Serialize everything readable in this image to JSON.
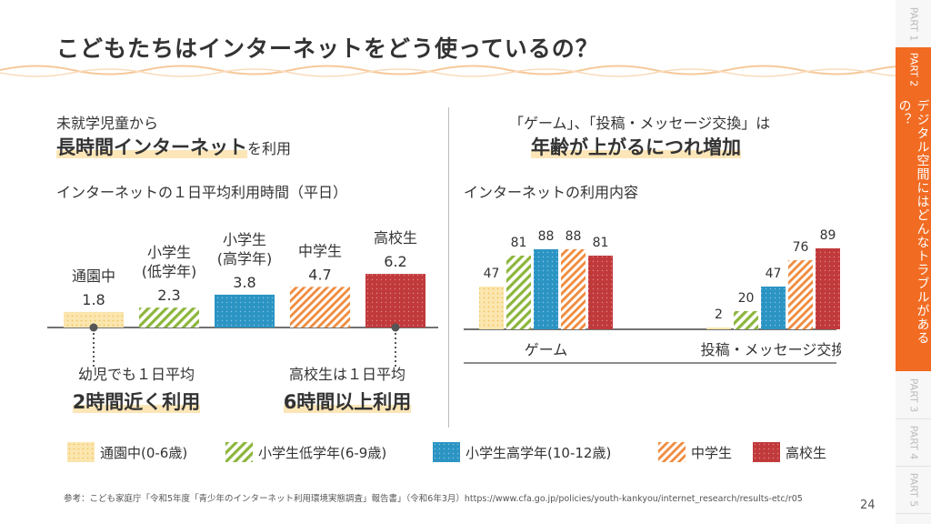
{
  "page": {
    "title": "こどもたちはインターネットをどう使っているの？",
    "page_number": "24",
    "footer": "参考：こども家庭庁「令和5年度「青少年のインターネット利用環境実態調査」報告書」（令和6年3月）https://www.cfa.go.jp/policies/youth-kankyou/internet_research/results-etc/r05"
  },
  "colors": {
    "accent": "#f26b22",
    "tsuen": "#f7d17a",
    "shogaku_low": "#8cb63c",
    "shogaku_high": "#2b94c3",
    "chugaku": "#f08a3c",
    "koko": "#c0393b"
  },
  "left": {
    "lead": "未就学児童から",
    "headline_bold": "長時間インターネット",
    "headline_rest": "を利用",
    "chart_title": "インターネットの１日平均利用時間（平日）",
    "callouts": [
      {
        "line1": "幼児でも１日平均",
        "line2": "2時間近く利用"
      },
      {
        "line1": "高校生は１日平均",
        "line2": "6時間以上利用"
      }
    ]
  },
  "right": {
    "lead": "「ゲーム」、「投稿・メッセージ交換」は",
    "headline": "年齢が上がるにつれ増加",
    "chart_title": "インターネットの利用内容"
  },
  "legend": [
    {
      "key": "tsuen",
      "label": "通園中(0-6歳)"
    },
    {
      "key": "shogaku_low",
      "label": "小学生低学年(6-9歳)"
    },
    {
      "key": "shogaku_high",
      "label": "小学生高学年(10-12歳)"
    },
    {
      "key": "chugaku",
      "label": "中学生"
    },
    {
      "key": "koko",
      "label": "高校生"
    }
  ],
  "sidebar": {
    "tabs": [
      {
        "label": "PART 1",
        "active": false
      },
      {
        "label": "PART 2",
        "active": true
      },
      {
        "label": "PART 3",
        "active": false
      },
      {
        "label": "PART 4",
        "active": false
      },
      {
        "label": "PART 5",
        "active": false
      }
    ],
    "active_chapter": "デジタル空間にはどんなトラブルがあるの？"
  },
  "chart_data": [
    {
      "type": "bar",
      "title": "インターネットの１日平均利用時間（平日）",
      "unit": "hours",
      "categories": [
        {
          "name": "通園中",
          "lines": [
            "通園中"
          ],
          "key": "tsuen"
        },
        {
          "name": "小学生(低学年)",
          "lines": [
            "小学生",
            "(低学年)"
          ],
          "key": "shogaku_low"
        },
        {
          "name": "小学生(高学年)",
          "lines": [
            "小学生",
            "(高学年)"
          ],
          "key": "shogaku_high"
        },
        {
          "name": "中学生",
          "lines": [
            "中学生"
          ],
          "key": "chugaku"
        },
        {
          "name": "高校生",
          "lines": [
            "高校生"
          ],
          "key": "koko"
        }
      ],
      "values": [
        1.8,
        2.3,
        3.8,
        4.7,
        6.2
      ],
      "value_labels": [
        "1.8",
        "2.3",
        "3.8",
        "4.7",
        "6.2"
      ]
    },
    {
      "type": "bar",
      "title": "インターネットの利用内容",
      "unit": "%",
      "categories": [
        "ゲーム",
        "投稿・メッセージ交換"
      ],
      "series": [
        {
          "name": "通園中(0-6歳)",
          "key": "tsuen",
          "values": [
            47,
            2
          ]
        },
        {
          "name": "小学生低学年(6-9歳)",
          "key": "shogaku_low",
          "values": [
            81,
            20
          ]
        },
        {
          "name": "小学生高学年(10-12歳)",
          "key": "shogaku_high",
          "values": [
            88,
            47
          ]
        },
        {
          "name": "中学生",
          "key": "chugaku",
          "values": [
            88,
            76
          ]
        },
        {
          "name": "高校生",
          "key": "koko",
          "values": [
            81,
            89
          ]
        }
      ]
    }
  ]
}
